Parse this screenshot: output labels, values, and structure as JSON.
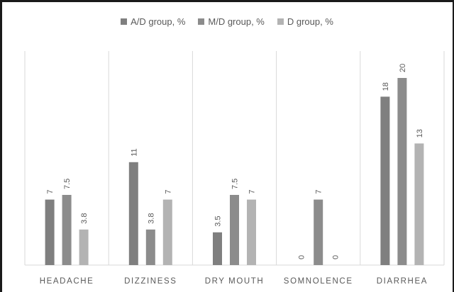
{
  "chart_data": {
    "type": "bar",
    "categories": [
      "HEADACHE",
      "DIZZINESS",
      "DRY MOUTH",
      "SOMNOLENCE",
      "DIARRHEA"
    ],
    "series": [
      {
        "name": "A/D group, %",
        "values": [
          7,
          11,
          3.5,
          0,
          18
        ],
        "labels": [
          "7",
          "11",
          "3.5",
          "0",
          "18"
        ],
        "color": "#7f7f7f"
      },
      {
        "name": "M/D group, %",
        "values": [
          7.5,
          3.8,
          7.5,
          7,
          20
        ],
        "labels": [
          "7.5",
          "3.8",
          "7.5",
          "7",
          "20"
        ],
        "color": "#8c8c8c"
      },
      {
        "name": "D group, %",
        "values": [
          3.8,
          7,
          7,
          0,
          13
        ],
        "labels": [
          "3.8",
          "7",
          "7",
          "0",
          "13"
        ],
        "color": "#b3b3b3"
      }
    ],
    "title": "",
    "xlabel": "",
    "ylabel": "",
    "ylim": [
      0,
      22
    ],
    "grid": "vertical category separators",
    "legend": "top-center",
    "data_labels": true
  }
}
